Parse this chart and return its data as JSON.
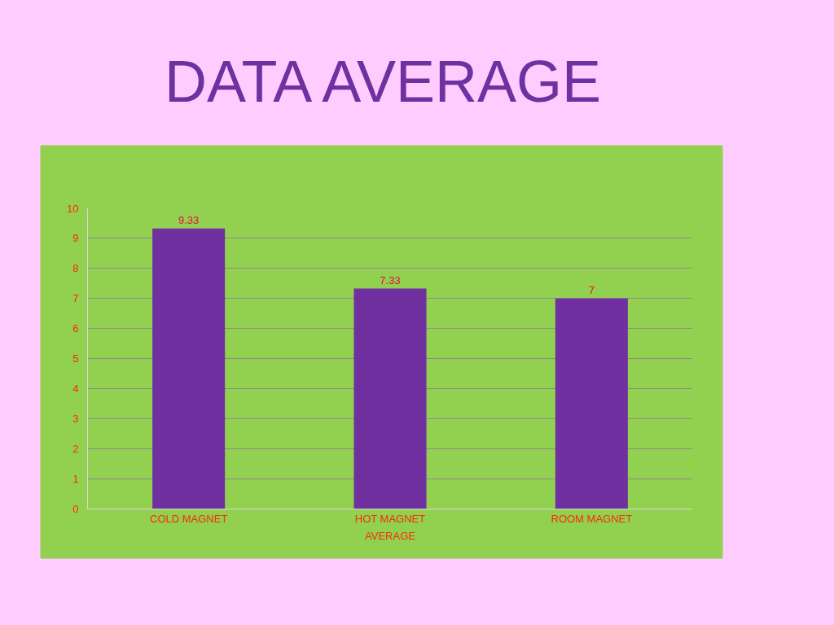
{
  "chart_data": {
    "type": "bar",
    "title": "DATA AVERAGE",
    "xlabel": "AVERAGE",
    "categories": [
      "COLD MAGNET",
      "HOT MAGNET",
      "ROOM MAGNET"
    ],
    "values": [
      9.33,
      7.33,
      7
    ],
    "color": "#7030a0",
    "ylim": [
      0,
      10
    ],
    "yticks": [
      0,
      1,
      2,
      3,
      4,
      5,
      6,
      7,
      8,
      9,
      10
    ],
    "grid": "y",
    "data_labels": true
  }
}
